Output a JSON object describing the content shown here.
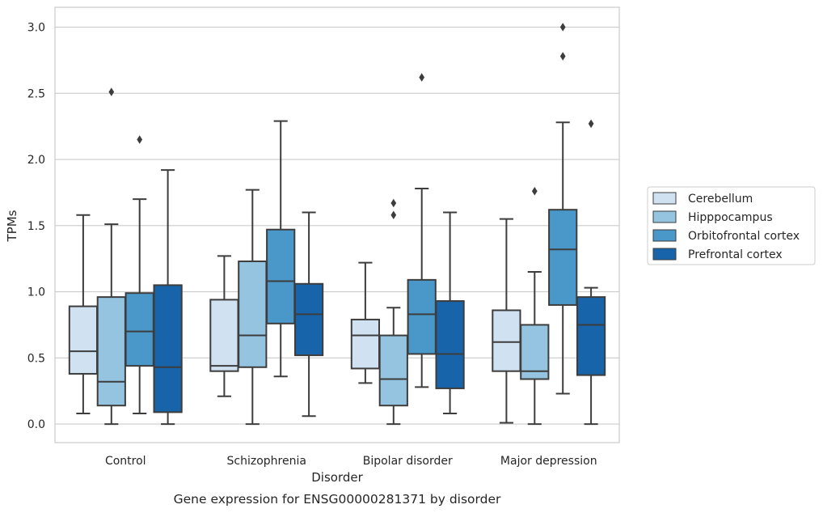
{
  "chart_data": {
    "type": "box",
    "caption": "Gene expression for ENSG00000281371 by disorder",
    "xlabel": "Disorder",
    "ylabel": "TPMs",
    "ylim": [
      -0.14,
      3.15
    ],
    "yticks": [
      "0.0",
      "0.5",
      "1.0",
      "1.5",
      "2.0",
      "2.5",
      "3.0"
    ],
    "grid": "horizontal",
    "legend_position": "center-right",
    "categories": [
      "Control",
      "Schizophrenia",
      "Bipolar disorder",
      "Major depression"
    ],
    "series": [
      {
        "name": "Cerebellum",
        "color": "#d0e1f2",
        "boxes": [
          {
            "whisker_low": 0.08,
            "q1": 0.38,
            "median": 0.55,
            "q3": 0.89,
            "whisker_high": 1.58,
            "outliers": []
          },
          {
            "whisker_low": 0.21,
            "q1": 0.4,
            "median": 0.44,
            "q3": 0.94,
            "whisker_high": 1.27,
            "outliers": []
          },
          {
            "whisker_low": 0.31,
            "q1": 0.42,
            "median": 0.67,
            "q3": 0.79,
            "whisker_high": 1.22,
            "outliers": []
          },
          {
            "whisker_low": 0.01,
            "q1": 0.4,
            "median": 0.62,
            "q3": 0.86,
            "whisker_high": 1.55,
            "outliers": []
          }
        ]
      },
      {
        "name": "Hipppocampus",
        "color": "#94c4df",
        "boxes": [
          {
            "whisker_low": 0.0,
            "q1": 0.14,
            "median": 0.32,
            "q3": 0.96,
            "whisker_high": 1.51,
            "outliers": [
              2.51
            ]
          },
          {
            "whisker_low": 0.0,
            "q1": 0.43,
            "median": 0.67,
            "q3": 1.23,
            "whisker_high": 1.77,
            "outliers": []
          },
          {
            "whisker_low": 0.0,
            "q1": 0.14,
            "median": 0.34,
            "q3": 0.67,
            "whisker_high": 0.88,
            "outliers": [
              1.58,
              1.67
            ]
          },
          {
            "whisker_low": 0.0,
            "q1": 0.34,
            "median": 0.4,
            "q3": 0.75,
            "whisker_high": 1.15,
            "outliers": [
              1.76
            ]
          }
        ]
      },
      {
        "name": "Orbitofrontal cortex",
        "color": "#4a98c9",
        "boxes": [
          {
            "whisker_low": 0.08,
            "q1": 0.44,
            "median": 0.7,
            "q3": 0.99,
            "whisker_high": 1.7,
            "outliers": [
              2.15
            ]
          },
          {
            "whisker_low": 0.36,
            "q1": 0.76,
            "median": 1.08,
            "q3": 1.47,
            "whisker_high": 2.29,
            "outliers": []
          },
          {
            "whisker_low": 0.28,
            "q1": 0.53,
            "median": 0.83,
            "q3": 1.09,
            "whisker_high": 1.78,
            "outliers": [
              2.62
            ]
          },
          {
            "whisker_low": 0.23,
            "q1": 0.9,
            "median": 1.32,
            "q3": 1.62,
            "whisker_high": 2.28,
            "outliers": [
              2.78,
              3.0
            ]
          }
        ]
      },
      {
        "name": "Prefrontal cortex",
        "color": "#1764ab",
        "boxes": [
          {
            "whisker_low": 0.0,
            "q1": 0.09,
            "median": 0.43,
            "q3": 1.05,
            "whisker_high": 1.92,
            "outliers": []
          },
          {
            "whisker_low": 0.06,
            "q1": 0.52,
            "median": 0.83,
            "q3": 1.06,
            "whisker_high": 1.6,
            "outliers": []
          },
          {
            "whisker_low": 0.08,
            "q1": 0.27,
            "median": 0.53,
            "q3": 0.93,
            "whisker_high": 1.6,
            "outliers": []
          },
          {
            "whisker_low": 0.0,
            "q1": 0.37,
            "median": 0.75,
            "q3": 0.96,
            "whisker_high": 1.03,
            "outliers": [
              2.27
            ]
          }
        ]
      }
    ]
  }
}
